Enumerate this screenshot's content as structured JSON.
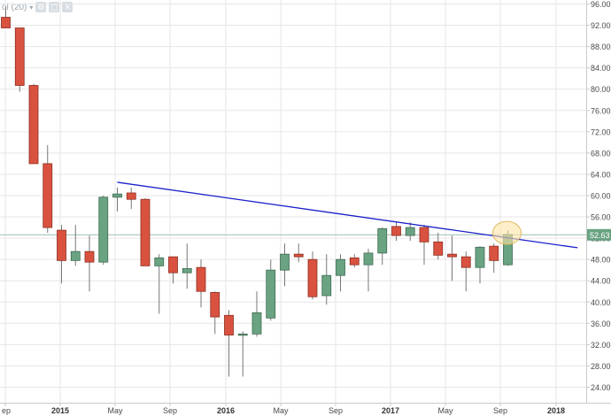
{
  "toolbar": {
    "indicator_label": "ol (20)",
    "caret": "▾",
    "settings_icon": "gear-icon",
    "hide_icon": "hide-icon",
    "close_icon": "close-icon"
  },
  "colors": {
    "up": "#6aa382",
    "down": "#d9523f",
    "trendline": "#1a1fc9",
    "price_line": "#9dbfae",
    "price_tag": "#6aa382",
    "highlight_fill": "#fde4a6",
    "highlight_stroke": "#e0b860",
    "grid": "#e6e6e6"
  },
  "chart_data": {
    "type": "candlestick",
    "title": "",
    "xlabel": "",
    "ylabel": "",
    "ylim": [
      22,
      96
    ],
    "grid": true,
    "y_ticks": [
      "96.00",
      "92.00",
      "88.00",
      "84.00",
      "80.00",
      "76.00",
      "72.00",
      "68.00",
      "64.00",
      "60.00",
      "56.00",
      "52.00",
      "48.00",
      "44.00",
      "40.00",
      "36.00",
      "32.00",
      "28.00",
      "24.00"
    ],
    "x_ticks": [
      {
        "label": "ep",
        "bold": false
      },
      {
        "label": "2015",
        "bold": true
      },
      {
        "label": "May",
        "bold": false
      },
      {
        "label": "Sep",
        "bold": false
      },
      {
        "label": "2016",
        "bold": true
      },
      {
        "label": "May",
        "bold": false
      },
      {
        "label": "Sep",
        "bold": false
      },
      {
        "label": "2017",
        "bold": true
      },
      {
        "label": "May",
        "bold": false
      },
      {
        "label": "Sep",
        "bold": false
      },
      {
        "label": "2018",
        "bold": true
      }
    ],
    "candles": [
      {
        "o": 93.5,
        "h": 95.5,
        "l": 91.5,
        "c": 91.5
      },
      {
        "o": 91.5,
        "h": 91.5,
        "l": 79.5,
        "c": 80.7
      },
      {
        "o": 80.7,
        "h": 81.0,
        "l": 66.0,
        "c": 66.0
      },
      {
        "o": 66.0,
        "h": 69.5,
        "l": 53.0,
        "c": 54.0
      },
      {
        "o": 53.5,
        "h": 54.5,
        "l": 43.5,
        "c": 47.8
      },
      {
        "o": 47.8,
        "h": 54.5,
        "l": 46.8,
        "c": 49.5
      },
      {
        "o": 49.5,
        "h": 52.5,
        "l": 42.0,
        "c": 47.5
      },
      {
        "o": 47.5,
        "h": 60.0,
        "l": 47.0,
        "c": 59.7
      },
      {
        "o": 59.7,
        "h": 61.5,
        "l": 57.0,
        "c": 60.3
      },
      {
        "o": 60.5,
        "h": 61.5,
        "l": 57.5,
        "c": 59.3
      },
      {
        "o": 59.3,
        "h": 59.5,
        "l": 46.8,
        "c": 46.8
      },
      {
        "o": 46.8,
        "h": 49.0,
        "l": 37.8,
        "c": 48.3
      },
      {
        "o": 48.5,
        "h": 48.5,
        "l": 43.5,
        "c": 45.5
      },
      {
        "o": 45.5,
        "h": 51.0,
        "l": 42.5,
        "c": 46.3
      },
      {
        "o": 46.5,
        "h": 48.0,
        "l": 39.0,
        "c": 42.0
      },
      {
        "o": 41.8,
        "h": 42.0,
        "l": 34.0,
        "c": 37.2
      },
      {
        "o": 37.5,
        "h": 38.5,
        "l": 26.0,
        "c": 33.8
      },
      {
        "o": 33.8,
        "h": 34.5,
        "l": 26.0,
        "c": 34.0
      },
      {
        "o": 34.0,
        "h": 42.0,
        "l": 33.5,
        "c": 38.0
      },
      {
        "o": 37.0,
        "h": 48.0,
        "l": 36.5,
        "c": 46.0
      },
      {
        "o": 46.0,
        "h": 51.0,
        "l": 43.0,
        "c": 49.0
      },
      {
        "o": 49.0,
        "h": 51.0,
        "l": 47.5,
        "c": 48.5
      },
      {
        "o": 48.0,
        "h": 49.5,
        "l": 40.5,
        "c": 41.0
      },
      {
        "o": 41.2,
        "h": 49.0,
        "l": 39.5,
        "c": 45.0
      },
      {
        "o": 45.0,
        "h": 49.0,
        "l": 42.0,
        "c": 48.0
      },
      {
        "o": 48.3,
        "h": 49.0,
        "l": 46.5,
        "c": 47.0
      },
      {
        "o": 47.0,
        "h": 50.0,
        "l": 42.0,
        "c": 49.2
      },
      {
        "o": 49.2,
        "h": 54.0,
        "l": 47.0,
        "c": 53.8
      },
      {
        "o": 54.2,
        "h": 55.0,
        "l": 51.5,
        "c": 52.5
      },
      {
        "o": 52.5,
        "h": 55.0,
        "l": 51.5,
        "c": 54.0
      },
      {
        "o": 54.0,
        "h": 54.5,
        "l": 47.0,
        "c": 51.3
      },
      {
        "o": 51.3,
        "h": 53.0,
        "l": 48.0,
        "c": 48.8
      },
      {
        "o": 49.0,
        "h": 52.5,
        "l": 44.0,
        "c": 48.5
      },
      {
        "o": 48.5,
        "h": 49.5,
        "l": 42.0,
        "c": 46.5
      },
      {
        "o": 46.5,
        "h": 50.5,
        "l": 43.5,
        "c": 50.3
      },
      {
        "o": 50.5,
        "h": 51.0,
        "l": 45.5,
        "c": 47.8
      },
      {
        "o": 47.0,
        "h": 53.5,
        "l": 46.8,
        "c": 52.7
      }
    ],
    "trendline": {
      "start": {
        "candle": 8,
        "y": 62.5
      },
      "end": {
        "candle": 41,
        "y": 50.2
      }
    },
    "last_price": "52.63",
    "highlight": {
      "candle": 36,
      "y": 53.0
    }
  }
}
